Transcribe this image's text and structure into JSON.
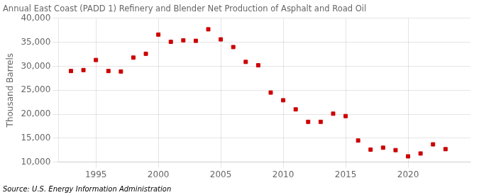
{
  "chart_data": {
    "type": "scatter",
    "title": "Annual East Coast (PADD 1) Refinery and Blender Net Production of Asphalt and Road Oil",
    "ylabel": "Thousand Barrels",
    "annotations": [
      "Source: U.S. Energy Information Administration"
    ],
    "x": [
      1993,
      1994,
      1995,
      1996,
      1997,
      1998,
      1999,
      2000,
      2001,
      2002,
      2003,
      2004,
      2005,
      2006,
      2007,
      2008,
      2009,
      2010,
      2011,
      2012,
      2013,
      2014,
      2015,
      2016,
      2017,
      2018,
      2019,
      2020,
      2021,
      2022,
      2023
    ],
    "values": [
      29000,
      29200,
      31300,
      29000,
      28900,
      31800,
      32600,
      36600,
      35100,
      35400,
      35300,
      37700,
      35600,
      34000,
      30900,
      30200,
      24500,
      22900,
      21000,
      18400,
      18400,
      20100,
      19600,
      14500,
      12600,
      13000,
      12500,
      11200,
      11800,
      13700,
      12700
    ],
    "color": "#cc0000",
    "marker": "square",
    "xlim": [
      1992,
      2025
    ],
    "ylim": [
      10000,
      40000
    ],
    "xticks": [
      1995,
      2000,
      2005,
      2010,
      2015,
      2020
    ],
    "yticks": [
      {
        "value": 10000,
        "label": "10,000"
      },
      {
        "value": 15000,
        "label": "15,000"
      },
      {
        "value": 20000,
        "label": "20,000"
      },
      {
        "value": 25000,
        "label": "25,000"
      },
      {
        "value": 30000,
        "label": "30,000"
      },
      {
        "value": 35000,
        "label": "35,000"
      },
      {
        "value": 40000,
        "label": "40,000"
      }
    ],
    "grid": true
  }
}
